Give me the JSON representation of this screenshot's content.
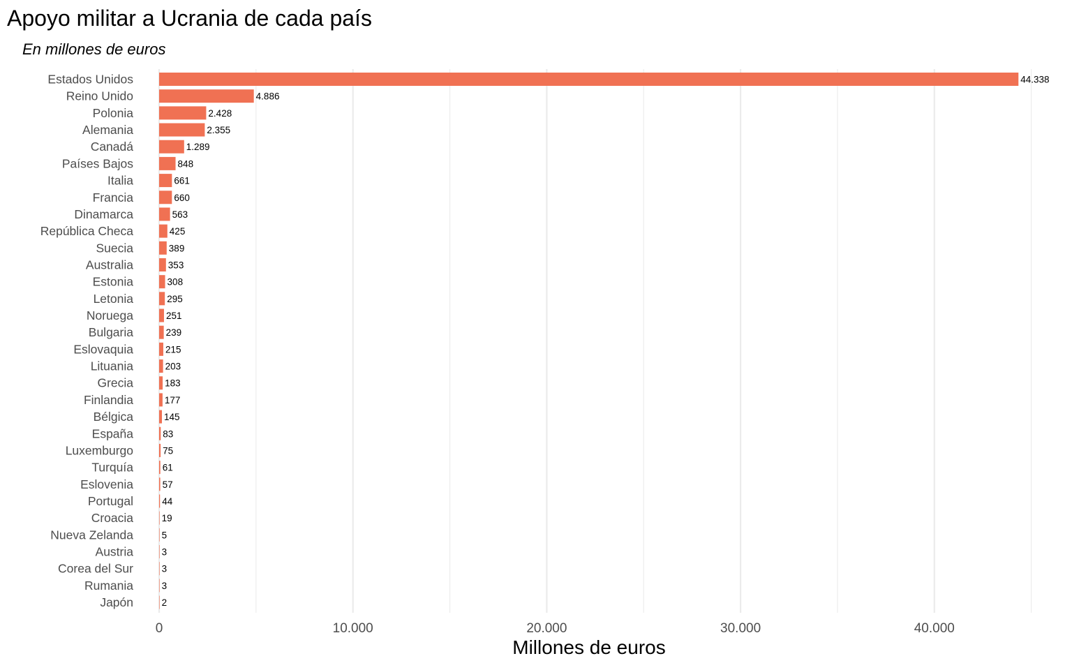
{
  "chart_data": {
    "type": "bar",
    "orientation": "horizontal",
    "title": "Apoyo militar a Ucrania de cada país",
    "subtitle": "En millones de euros",
    "xlabel": "Millones de euros",
    "ylabel": "",
    "bar_color": "#f07153",
    "grid_color": "#ebebeb",
    "grid": true,
    "legend": "none",
    "xlim": [
      0,
      45000
    ],
    "x_ticks": [
      {
        "value": 0,
        "label": "0"
      },
      {
        "value": 10000,
        "label": "10.000"
      },
      {
        "value": 20000,
        "label": "20.000"
      },
      {
        "value": 30000,
        "label": "30.000"
      },
      {
        "value": 40000,
        "label": "40.000"
      }
    ],
    "categories": [
      "Estados Unidos",
      "Reino Unido",
      "Polonia",
      "Alemania",
      "Canadá",
      "Países Bajos",
      "Italia",
      "Francia",
      "Dinamarca",
      "República Checa",
      "Suecia",
      "Australia",
      "Estonia",
      "Letonia",
      "Noruega",
      "Bulgaria",
      "Eslovaquia",
      "Lituania",
      "Grecia",
      "Finlandia",
      "Bélgica",
      "España",
      "Luxemburgo",
      "Turquía",
      "Eslovenia",
      "Portugal",
      "Croacia",
      "Nueva Zelanda",
      "Austria",
      "Corea del Sur",
      "Rumania",
      "Japón"
    ],
    "values": [
      44338,
      4886,
      2428,
      2355,
      1289,
      848,
      661,
      660,
      563,
      425,
      389,
      353,
      308,
      295,
      251,
      239,
      215,
      203,
      183,
      177,
      145,
      83,
      75,
      61,
      57,
      44,
      19,
      5,
      3,
      3,
      3,
      2
    ],
    "value_labels": [
      "44.338",
      "4.886",
      "2.428",
      "2.355",
      "1.289",
      "848",
      "661",
      "660",
      "563",
      "425",
      "389",
      "353",
      "308",
      "295",
      "251",
      "239",
      "215",
      "203",
      "183",
      "177",
      "145",
      "83",
      "75",
      "61",
      "57",
      "44",
      "19",
      "5",
      "3",
      "3",
      "3",
      "2"
    ]
  }
}
